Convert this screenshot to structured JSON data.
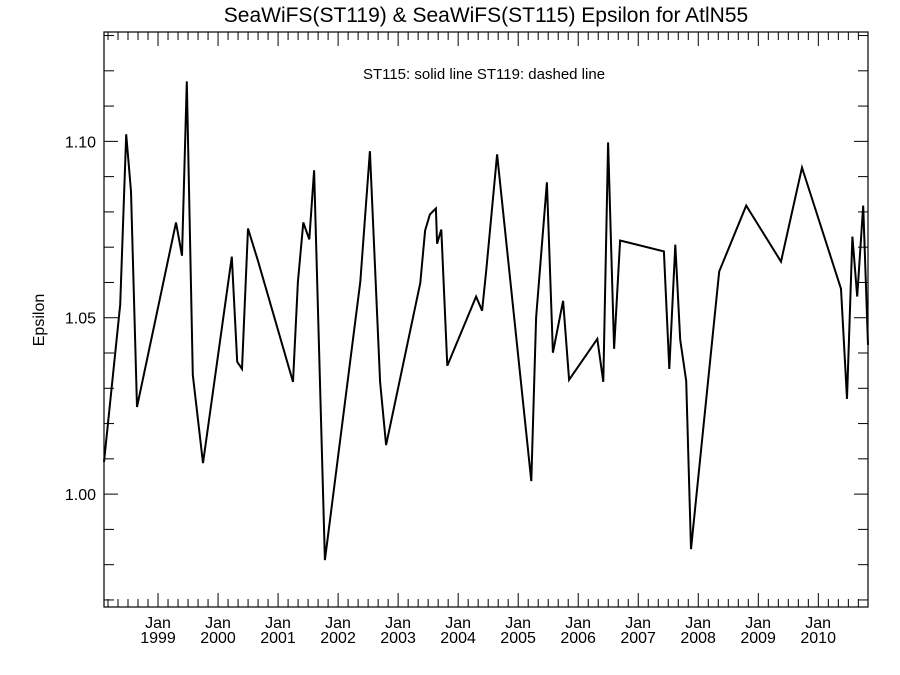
{
  "chart_data": {
    "type": "line",
    "title": "SeaWiFS(ST119) & SeaWiFS(ST115)  Epsilon for AtlN55",
    "annotation": "ST115: solid line   ST119: dashed line",
    "xlabel": "",
    "ylabel": "Epsilon",
    "xlim": [
      1998.1,
      2010.83
    ],
    "ylim": [
      0.968,
      1.131
    ],
    "grid": false,
    "y_ticks": [
      1.0,
      1.05,
      1.1
    ],
    "y_tick_labels": [
      "1.00",
      "1.05",
      "1.10"
    ],
    "y_minor_step": 0.01,
    "x_ticks": [
      1999,
      2000,
      2001,
      2002,
      2003,
      2004,
      2005,
      2006,
      2007,
      2008,
      2009,
      2010
    ],
    "x_tick_month": "Jan",
    "x_tick_labels": [
      "1999",
      "2000",
      "2001",
      "2002",
      "2003",
      "2004",
      "2005",
      "2006",
      "2007",
      "2008",
      "2009",
      "2010"
    ],
    "x_minor_step": 0.1667,
    "series": [
      {
        "name": "ST115",
        "style": "solid",
        "color": "#000000",
        "x": [
          1998.1,
          1998.37,
          1998.47,
          1998.55,
          1998.65,
          1999.3,
          1999.4,
          1999.48,
          1999.58,
          1999.75,
          2000.23,
          2000.32,
          2000.4,
          2000.5,
          2000.67,
          2001.25,
          2001.33,
          2001.42,
          2001.52,
          2001.6,
          2001.78,
          2002.37,
          2002.53,
          2002.7,
          2002.8,
          2003.37,
          2003.45,
          2003.53,
          2003.63,
          2003.65,
          2003.72,
          2003.82,
          2004.3,
          2004.4,
          2004.47,
          2004.65,
          2005.22,
          2005.3,
          2005.48,
          2005.58,
          2005.75,
          2005.85,
          2006.32,
          2006.42,
          2006.5,
          2006.6,
          2006.7,
          2007.43,
          2007.52,
          2007.62,
          2007.7,
          2007.8,
          2007.88,
          2008.35,
          2008.8,
          2009.38,
          2009.73,
          2010.38,
          2010.48,
          2010.57,
          2010.65,
          2010.75,
          2010.83
        ],
        "y": [
          1.0091,
          1.0537,
          1.102,
          1.0858,
          1.0247,
          1.077,
          1.0676,
          1.117,
          1.0338,
          1.0088,
          1.0673,
          1.0375,
          1.0355,
          1.0753,
          1.0659,
          1.0318,
          1.0602,
          1.077,
          1.0722,
          1.0918,
          0.9813,
          1.0602,
          1.0972,
          1.0318,
          1.0139,
          1.0599,
          1.0747,
          1.0793,
          1.081,
          1.071,
          1.075,
          1.0364,
          1.056,
          1.052,
          1.0636,
          1.0963,
          1.0037,
          1.05,
          1.0884,
          1.0401,
          1.0548,
          1.0324,
          1.044,
          1.0318,
          1.0997,
          1.0412,
          1.0719,
          1.0688,
          1.0355,
          1.0707,
          1.0438,
          1.0321,
          0.9844,
          1.0631,
          1.0818,
          1.0659,
          1.0926,
          1.0582,
          1.027,
          1.073,
          1.056,
          1.0818,
          1.0423
        ]
      }
    ]
  }
}
